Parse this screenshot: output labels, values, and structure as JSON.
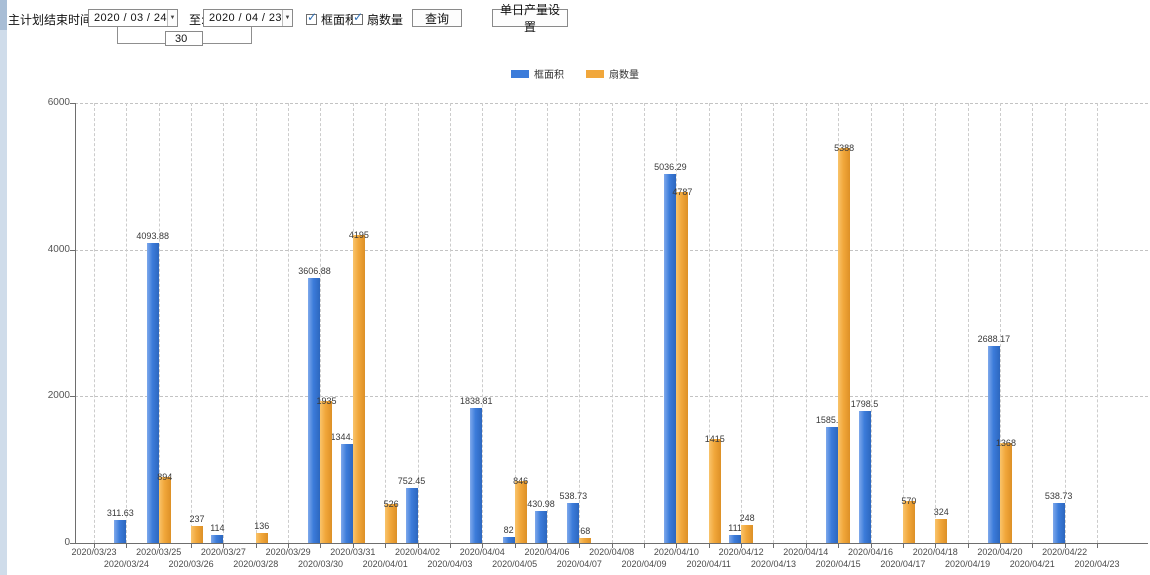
{
  "toolbar": {
    "label_range": "主计划结束时间:",
    "date_from": "2020 / 03 / 24",
    "label_to": "至:",
    "date_to": "2020 / 04 / 23",
    "interval_days": "30",
    "query_button": "查询",
    "daily_output_button": "单日产量设置",
    "checkbox_frame_area": "框面积",
    "checkbox_fan_count": "扇数量",
    "checkbox_frame_area_checked": true,
    "checkbox_fan_count_checked": true
  },
  "colors": {
    "series_blue": "#3c7cda",
    "series_orange": "#f1a73b"
  },
  "chart_data": {
    "type": "bar",
    "title": "",
    "xlabel": "",
    "ylabel": "",
    "ylim": [
      0,
      6000
    ],
    "yticks": [
      0,
      2000,
      4000,
      6000
    ],
    "grid": true,
    "legend_position": "top",
    "categories": [
      "2020/03/23",
      "2020/03/24",
      "2020/03/25",
      "2020/03/26",
      "2020/03/27",
      "2020/03/28",
      "2020/03/29",
      "2020/03/30",
      "2020/03/31",
      "2020/04/01",
      "2020/04/02",
      "2020/04/03",
      "2020/04/04",
      "2020/04/05",
      "2020/04/06",
      "2020/04/07",
      "2020/04/08",
      "2020/04/09",
      "2020/04/10",
      "2020/04/11",
      "2020/04/12",
      "2020/04/13",
      "2020/04/14",
      "2020/04/15",
      "2020/04/16",
      "2020/04/17",
      "2020/04/18",
      "2020/04/19",
      "2020/04/20",
      "2020/04/21",
      "2020/04/22",
      "2020/04/23"
    ],
    "series": [
      {
        "name": "框面积",
        "color": "#3c7cda",
        "values": [
          null,
          311.63,
          4093.88,
          null,
          114,
          null,
          null,
          3606.88,
          1344.95,
          null,
          752.45,
          null,
          1838.81,
          82,
          430.98,
          538.73,
          null,
          null,
          5036.29,
          null,
          111,
          null,
          null,
          1585.96,
          1798.5,
          null,
          null,
          null,
          2688.17,
          null,
          538.73,
          null
        ]
      },
      {
        "name": "扇数量",
        "color": "#f1a73b",
        "values": [
          null,
          null,
          894,
          237,
          null,
          136,
          null,
          1935,
          4195,
          526,
          null,
          null,
          null,
          846,
          null,
          68,
          null,
          null,
          4787,
          1415,
          248,
          null,
          null,
          5388,
          null,
          570,
          324,
          null,
          1368,
          null,
          null,
          null
        ]
      }
    ]
  }
}
